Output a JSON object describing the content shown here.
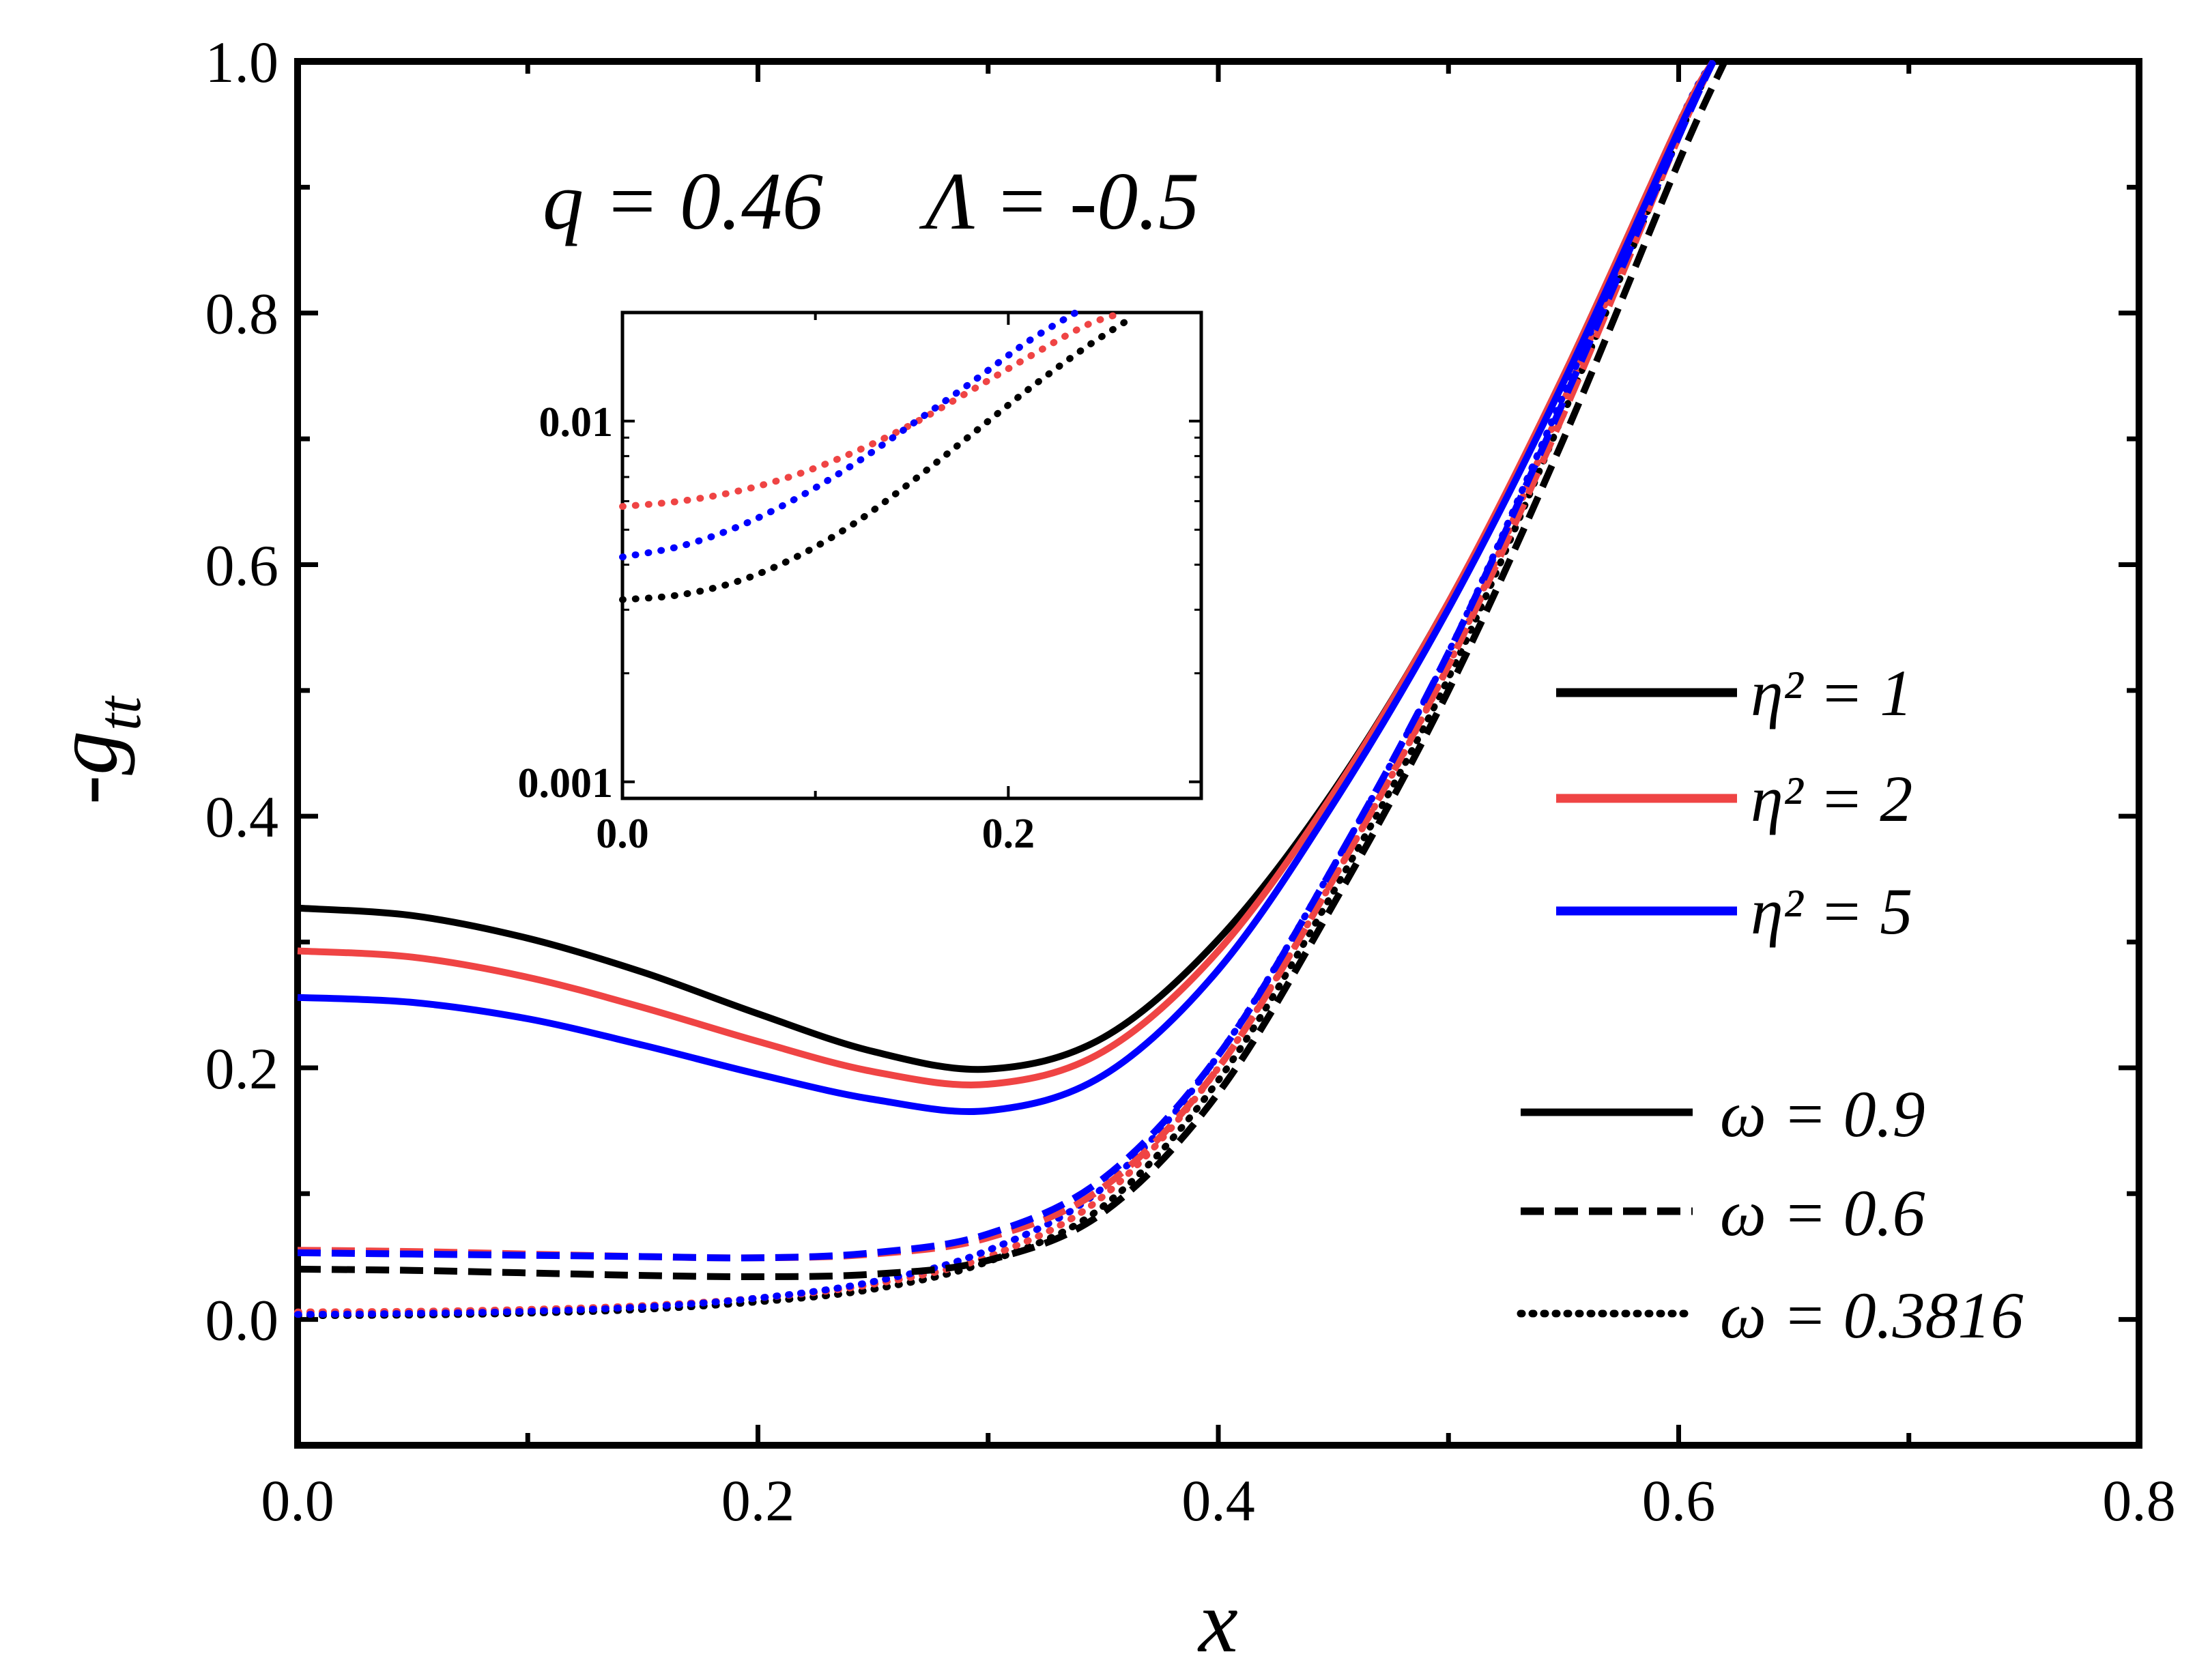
{
  "chart_data": [
    {
      "type": "line",
      "title": "",
      "annotation": "q = 0.46     Λ = -0.5",
      "xlabel": "x",
      "ylabel": "-g",
      "ylabel_subscript": "tt",
      "xlim": [
        0.0,
        0.8
      ],
      "ylim": [
        -0.1,
        1.0
      ],
      "xticks": [
        "0.0",
        "0.2",
        "0.4",
        "0.6",
        "0.8"
      ],
      "yticks": [
        "0.0",
        "0.2",
        "0.4",
        "0.6",
        "0.8",
        "1.0"
      ],
      "legend_color": [
        {
          "label": "η² = 1",
          "color": "#000000"
        },
        {
          "label": "η² = 2",
          "color": "#ef4444"
        },
        {
          "label": "η² = 5",
          "color": "#0000ff"
        }
      ],
      "legend_style": [
        {
          "label": "ω = 0.9",
          "style": "solid"
        },
        {
          "label": "ω = 0.6",
          "style": "dashed"
        },
        {
          "label": "ω = 0.3816",
          "style": "dotted"
        }
      ],
      "series": [
        {
          "name": "η²=1, ω=0.9",
          "color": "#000000",
          "style": "solid",
          "x": [
            0.0,
            0.05,
            0.1,
            0.15,
            0.2,
            0.25,
            0.3,
            0.35,
            0.4,
            0.45,
            0.5,
            0.55,
            0.6,
            0.615
          ],
          "y": [
            0.327,
            0.321,
            0.303,
            0.276,
            0.243,
            0.213,
            0.199,
            0.224,
            0.302,
            0.42,
            0.57,
            0.75,
            0.95,
            1.0
          ]
        },
        {
          "name": "η²=2, ω=0.9",
          "color": "#ef4444",
          "style": "solid",
          "x": [
            0.0,
            0.05,
            0.1,
            0.15,
            0.2,
            0.25,
            0.3,
            0.35,
            0.4,
            0.45,
            0.5,
            0.55,
            0.6,
            0.615
          ],
          "y": [
            0.293,
            0.288,
            0.272,
            0.248,
            0.221,
            0.197,
            0.187,
            0.213,
            0.293,
            0.418,
            0.57,
            0.75,
            0.95,
            1.0
          ]
        },
        {
          "name": "η²=5, ω=0.9",
          "color": "#0000ff",
          "style": "solid",
          "x": [
            0.0,
            0.05,
            0.1,
            0.15,
            0.2,
            0.25,
            0.3,
            0.35,
            0.4,
            0.45,
            0.5,
            0.55,
            0.6,
            0.615
          ],
          "y": [
            0.256,
            0.252,
            0.239,
            0.218,
            0.195,
            0.175,
            0.166,
            0.194,
            0.278,
            0.41,
            0.565,
            0.745,
            0.945,
            1.0
          ]
        },
        {
          "name": "η²=1, ω=0.6",
          "color": "#000000",
          "style": "dashed",
          "x": [
            0.0,
            0.05,
            0.1,
            0.15,
            0.2,
            0.25,
            0.3,
            0.35,
            0.4,
            0.45,
            0.5,
            0.55,
            0.6,
            0.62
          ],
          "y": [
            0.04,
            0.039,
            0.037,
            0.035,
            0.034,
            0.036,
            0.047,
            0.085,
            0.18,
            0.33,
            0.5,
            0.7,
            0.92,
            1.0
          ]
        },
        {
          "name": "η²=2, ω=0.6",
          "color": "#ef4444",
          "style": "dashed",
          "x": [
            0.0,
            0.05,
            0.1,
            0.15,
            0.2,
            0.25,
            0.3,
            0.35,
            0.4,
            0.45,
            0.5,
            0.55,
            0.6,
            0.615
          ],
          "y": [
            0.055,
            0.054,
            0.052,
            0.05,
            0.049,
            0.052,
            0.065,
            0.105,
            0.2,
            0.35,
            0.52,
            0.72,
            0.94,
            1.0
          ]
        },
        {
          "name": "η²=5, ω=0.6",
          "color": "#0000ff",
          "style": "dashed",
          "x": [
            0.0,
            0.05,
            0.1,
            0.15,
            0.2,
            0.25,
            0.3,
            0.35,
            0.4,
            0.45,
            0.5,
            0.55,
            0.6,
            0.615
          ],
          "y": [
            0.053,
            0.052,
            0.051,
            0.05,
            0.049,
            0.053,
            0.068,
            0.112,
            0.21,
            0.36,
            0.53,
            0.73,
            0.94,
            1.0
          ]
        },
        {
          "name": "η²=1, ω=0.3816",
          "color": "#000000",
          "style": "dotted",
          "x": [
            0.0,
            0.05,
            0.1,
            0.15,
            0.2,
            0.25,
            0.3,
            0.35,
            0.4,
            0.45,
            0.5,
            0.55,
            0.6,
            0.615
          ],
          "y": [
            0.003,
            0.0035,
            0.005,
            0.008,
            0.014,
            0.024,
            0.046,
            0.09,
            0.19,
            0.34,
            0.51,
            0.72,
            0.94,
            1.0
          ]
        },
        {
          "name": "η²=2, ω=0.3816",
          "color": "#ef4444",
          "style": "dotted",
          "x": [
            0.0,
            0.05,
            0.1,
            0.15,
            0.2,
            0.25,
            0.3,
            0.35,
            0.4,
            0.45,
            0.5,
            0.55,
            0.6,
            0.615
          ],
          "y": [
            0.006,
            0.0065,
            0.008,
            0.011,
            0.017,
            0.028,
            0.05,
            0.098,
            0.2,
            0.35,
            0.52,
            0.73,
            0.945,
            1.0
          ]
        },
        {
          "name": "η²=5, ω=0.3816",
          "color": "#0000ff",
          "style": "dotted",
          "x": [
            0.0,
            0.05,
            0.1,
            0.15,
            0.2,
            0.25,
            0.3,
            0.35,
            0.4,
            0.45,
            0.5,
            0.55,
            0.6,
            0.615
          ],
          "y": [
            0.004,
            0.0048,
            0.0065,
            0.01,
            0.017,
            0.03,
            0.055,
            0.105,
            0.21,
            0.36,
            0.53,
            0.735,
            0.95,
            1.0
          ]
        }
      ]
    },
    {
      "type": "line",
      "role": "inset",
      "yscale": "log",
      "xlim": [
        0.0,
        0.3
      ],
      "ylim": [
        0.0009,
        0.02
      ],
      "xticks": [
        "0.0",
        "0.2"
      ],
      "yticks": [
        "0.001",
        "0.01"
      ],
      "series": [
        {
          "name": "η²=1, ω=0.3816",
          "color": "#000000",
          "style": "dotted",
          "x": [
            0.0,
            0.03,
            0.06,
            0.09,
            0.12,
            0.15,
            0.18,
            0.21,
            0.24,
            0.265
          ],
          "y": [
            0.0032,
            0.0033,
            0.0036,
            0.0042,
            0.0052,
            0.0068,
            0.0091,
            0.0122,
            0.016,
            0.0195
          ]
        },
        {
          "name": "η²=2, ω=0.3816",
          "color": "#ef4444",
          "style": "dotted",
          "x": [
            0.0,
            0.03,
            0.06,
            0.09,
            0.12,
            0.15,
            0.18,
            0.21,
            0.24,
            0.26
          ],
          "y": [
            0.0058,
            0.006,
            0.0064,
            0.0071,
            0.0082,
            0.0098,
            0.0121,
            0.015,
            0.0184,
            0.02
          ]
        },
        {
          "name": "η²=5, ω=0.3816",
          "color": "#0000ff",
          "style": "dotted",
          "x": [
            0.0,
            0.03,
            0.06,
            0.09,
            0.12,
            0.15,
            0.18,
            0.21,
            0.235
          ],
          "y": [
            0.0042,
            0.0045,
            0.0051,
            0.0061,
            0.0076,
            0.0098,
            0.0127,
            0.0166,
            0.02
          ]
        }
      ]
    }
  ]
}
